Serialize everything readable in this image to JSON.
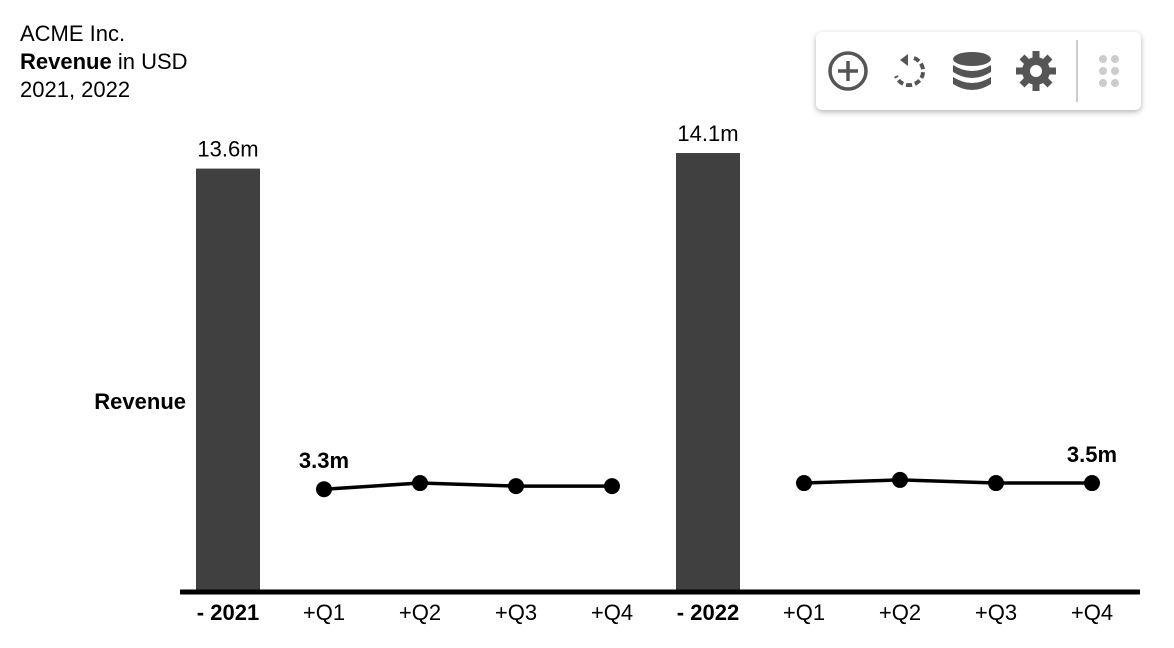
{
  "header": {
    "company": "ACME Inc.",
    "measure": "Revenue",
    "unit": "in USD",
    "period": "2021, 2022"
  },
  "chart_data": {
    "type": "bar-line",
    "ylabel": "Revenue",
    "categories": [
      "- 2021",
      "+Q1",
      "+Q2",
      "+Q3",
      "+Q4",
      "- 2022",
      "+Q1",
      "+Q2",
      "+Q3",
      "+Q4"
    ],
    "ylim": [
      0,
      15
    ],
    "series": [
      {
        "type": "bar",
        "color": "#404040",
        "values": [
          13.6,
          null,
          null,
          null,
          null,
          14.1,
          null,
          null,
          null,
          null
        ],
        "value_labels": [
          "13.6m",
          null,
          null,
          null,
          null,
          "14.1m",
          null,
          null,
          null,
          null
        ]
      },
      {
        "type": "line",
        "color": "#000000",
        "values": [
          null,
          3.3,
          3.5,
          3.4,
          3.4,
          null,
          3.5,
          3.6,
          3.5,
          3.5
        ],
        "value_labels": [
          null,
          "3.3m",
          null,
          null,
          null,
          null,
          null,
          null,
          null,
          "3.5m"
        ]
      }
    ]
  }
}
